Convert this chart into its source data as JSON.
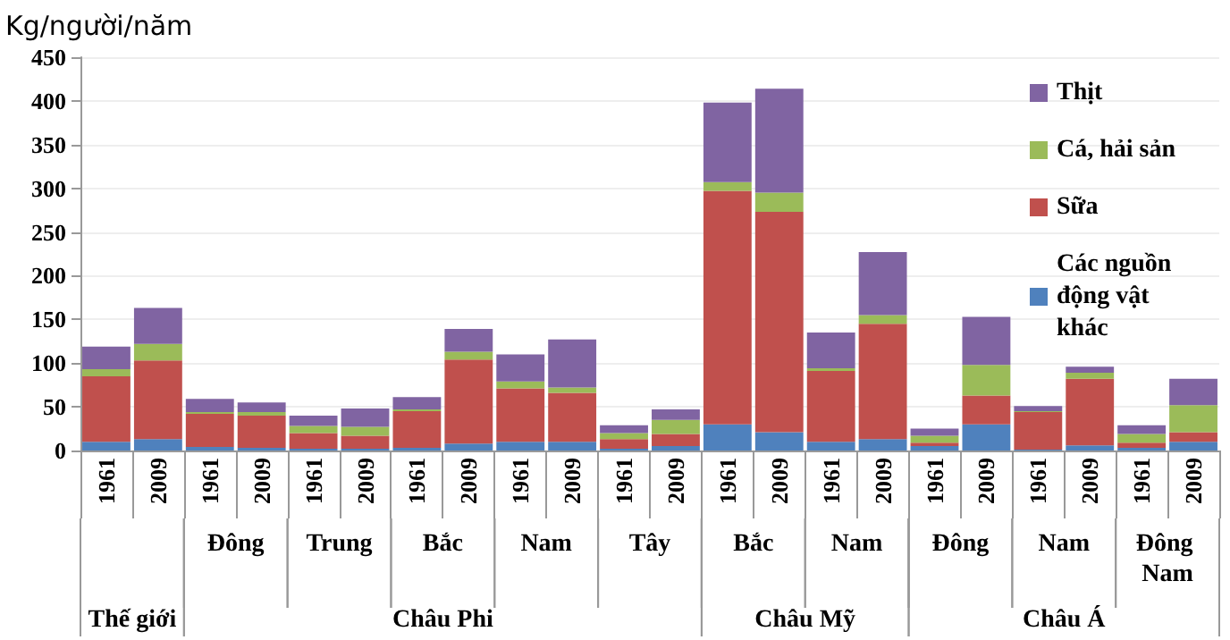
{
  "chart_data": {
    "type": "bar",
    "stacked": true,
    "ylabel": "Kg/người/năm",
    "categories": [
      "1961",
      "2009",
      "1961",
      "2009",
      "1961",
      "2009",
      "1961",
      "2009",
      "1961",
      "2009",
      "1961",
      "2009",
      "1961",
      "2009",
      "1961",
      "2009",
      "1961",
      "2009",
      "1961",
      "2009",
      "1961",
      "2009"
    ],
    "series": [
      {
        "name": "Các nguồn động vật khác",
        "color": "#4f81bd",
        "values": [
          10,
          13,
          4,
          3,
          2,
          2,
          3,
          8,
          10,
          10,
          2,
          5,
          30,
          21,
          10,
          13,
          5,
          30,
          1,
          6,
          3,
          10
        ]
      },
      {
        "name": "Sữa",
        "color": "#c0504d",
        "values": [
          75,
          90,
          38,
          37,
          18,
          15,
          42,
          96,
          61,
          56,
          11,
          14,
          267,
          252,
          81,
          132,
          4,
          33,
          43,
          76,
          6,
          11
        ]
      },
      {
        "name": "Cá, hải sản",
        "color": "#9bbb59",
        "values": [
          8,
          19,
          2,
          4,
          8,
          10,
          2,
          9,
          8,
          6,
          7,
          16,
          10,
          22,
          3,
          10,
          8,
          35,
          1,
          7,
          10,
          31
        ]
      },
      {
        "name": "Thịt",
        "color": "#8064a2",
        "values": [
          26,
          41,
          15,
          11,
          12,
          21,
          14,
          26,
          31,
          55,
          9,
          12,
          91,
          119,
          41,
          72,
          8,
          55,
          6,
          7,
          10,
          30
        ]
      }
    ],
    "ylim": [
      0,
      450
    ],
    "yticks": [
      0,
      50,
      100,
      150,
      200,
      250,
      300,
      350,
      400,
      450
    ],
    "grid": "y",
    "legend": "top right",
    "annotations": [
      "Đông",
      "Trung",
      "Bắc",
      "Nam",
      "Tây",
      "Bắc",
      "Nam",
      "Đông",
      "Nam",
      "Đông Nam",
      "Thế giới",
      "Châu Phi",
      "Châu Mỹ",
      "Châu Á"
    ]
  }
}
